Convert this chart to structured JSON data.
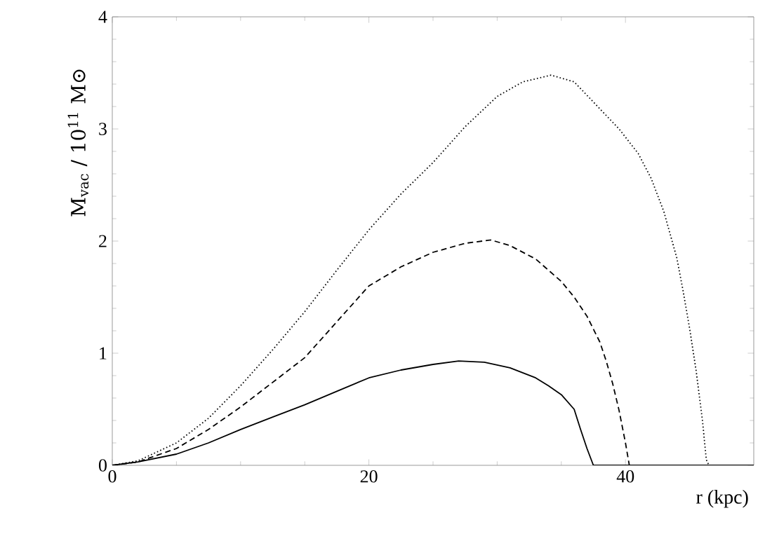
{
  "chart_data": {
    "type": "line",
    "xlabel": "r (kpc)",
    "ylabel": "M$_{vac}$ / 10$^{11}$ M⊙",
    "xlim": [
      0,
      50
    ],
    "ylim": [
      0,
      4
    ],
    "xticks": [
      0,
      20,
      40
    ],
    "yticks": [
      0,
      1,
      2,
      3,
      4
    ],
    "marker": "none",
    "series": [
      {
        "color": "#000000",
        "line_style": "solid",
        "x": [
          0,
          2,
          5,
          7.5,
          10,
          12.5,
          15,
          17.5,
          20,
          22.5,
          25,
          27,
          29,
          31,
          33,
          34,
          35,
          36,
          36.5,
          37,
          37.5,
          50
        ],
        "values": [
          0,
          0.03,
          0.1,
          0.2,
          0.32,
          0.43,
          0.54,
          0.66,
          0.78,
          0.85,
          0.9,
          0.93,
          0.92,
          0.87,
          0.78,
          0.71,
          0.63,
          0.5,
          0.32,
          0.15,
          0,
          0
        ]
      },
      {
        "color": "#000000",
        "line_style": "dashed",
        "x": [
          0,
          2,
          5,
          7.5,
          10,
          12.5,
          15,
          17.5,
          20,
          22.5,
          25,
          27.5,
          29.5,
          31,
          33,
          35,
          36,
          37,
          38,
          38.5,
          39,
          39.5,
          40,
          40.3
        ],
        "values": [
          0,
          0.03,
          0.15,
          0.32,
          0.52,
          0.74,
          0.96,
          1.28,
          1.6,
          1.77,
          1.9,
          1.98,
          2.01,
          1.96,
          1.84,
          1.64,
          1.5,
          1.33,
          1.1,
          0.93,
          0.73,
          0.49,
          0.2,
          0
        ]
      },
      {
        "color": "#000000",
        "line_style": "dotted",
        "x": [
          0,
          2,
          5,
          7.5,
          10,
          12.5,
          15,
          17.5,
          20,
          22.5,
          25,
          27.5,
          30,
          32,
          34.2,
          36,
          38,
          39.5,
          41,
          42,
          43,
          44,
          44.5,
          45,
          45.5,
          46,
          46.3,
          46.5
        ],
        "values": [
          0,
          0.04,
          0.2,
          0.42,
          0.71,
          1.03,
          1.37,
          1.74,
          2.1,
          2.42,
          2.7,
          3.02,
          3.29,
          3.42,
          3.48,
          3.42,
          3.18,
          3.0,
          2.78,
          2.56,
          2.26,
          1.85,
          1.55,
          1.22,
          0.85,
          0.4,
          0.05,
          0
        ]
      }
    ]
  }
}
